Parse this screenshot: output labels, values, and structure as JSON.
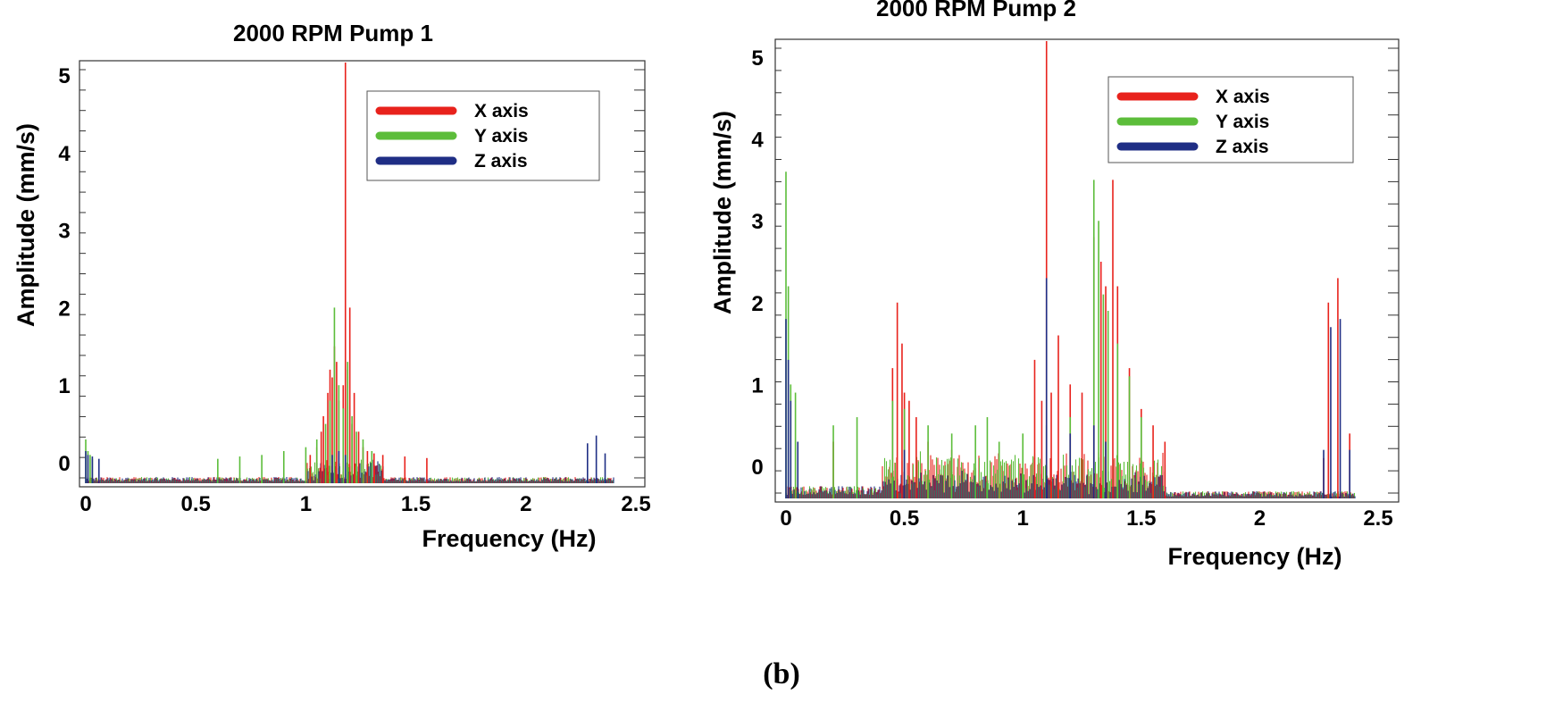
{
  "caption": "(b)",
  "colors": {
    "x": "#e8221c",
    "y": "#5cbd3a",
    "z": "#1f2e85",
    "axis": "#000000"
  },
  "chart_data": [
    {
      "type": "line",
      "title": "2000 RPM Pump 1",
      "xlabel": "Frequency (Hz)",
      "ylabel": "Amplitude (mm/s)",
      "xlim": [
        0,
        2.5
      ],
      "ylim": [
        -0.3,
        5.2
      ],
      "xticks": [
        "0",
        "0.5",
        "1",
        "1.5",
        "2",
        "2.5"
      ],
      "yticks": [
        "0",
        "1",
        "2",
        "3",
        "4",
        "5"
      ],
      "legend_position": "top-right",
      "series": [
        {
          "name": "X axis",
          "key": "x",
          "x": [
            1.02,
            1.05,
            1.07,
            1.08,
            1.1,
            1.11,
            1.12,
            1.13,
            1.14,
            1.15,
            1.17,
            1.18,
            1.19,
            1.2,
            1.21,
            1.22,
            1.24,
            1.26,
            1.28,
            1.31,
            1.35,
            1.45,
            1.55
          ],
          "y": [
            0.1,
            0.2,
            0.4,
            0.6,
            0.9,
            1.2,
            1.1,
            1.5,
            1.3,
            0.8,
            1.0,
            5.2,
            1.2,
            2.0,
            0.5,
            0.9,
            0.4,
            0.2,
            0.15,
            0.12,
            0.1,
            0.08,
            0.06
          ]
        },
        {
          "name": "Y axis",
          "key": "y",
          "x": [
            0.0,
            0.01,
            0.02,
            0.03,
            0.6,
            0.7,
            0.8,
            0.9,
            1.0,
            1.05,
            1.09,
            1.11,
            1.13,
            1.15,
            1.17,
            1.19,
            1.21,
            1.23,
            1.26,
            1.3
          ],
          "y": [
            0.3,
            0.15,
            0.1,
            0.05,
            0.05,
            0.08,
            0.1,
            0.15,
            0.2,
            0.3,
            0.5,
            0.8,
            2.0,
            1.0,
            0.7,
            1.3,
            0.6,
            0.4,
            0.3,
            0.15
          ]
        },
        {
          "name": "Z axis",
          "key": "z",
          "x": [
            0.0,
            0.01,
            0.03,
            0.06,
            1.12,
            1.15,
            1.18,
            2.28,
            2.32,
            2.36
          ],
          "y": [
            0.15,
            0.1,
            0.08,
            0.05,
            0.1,
            0.15,
            0.1,
            0.25,
            0.35,
            0.12
          ]
        }
      ]
    },
    {
      "type": "line",
      "title": "2000 RPM Pump 2",
      "xlabel": "Frequency (Hz)",
      "ylabel": "Amplitude (mm/s)",
      "xlim": [
        0,
        2.5
      ],
      "ylim": [
        -0.5,
        5.3
      ],
      "xticks": [
        "0",
        "0.5",
        "1",
        "1.5",
        "2",
        "2.5"
      ],
      "yticks": [
        "0",
        "1",
        "2",
        "3",
        "4",
        "5"
      ],
      "legend_position": "top-right",
      "series": [
        {
          "name": "X axis",
          "key": "x",
          "x": [
            0.2,
            0.45,
            0.47,
            0.49,
            0.5,
            0.52,
            0.55,
            0.6,
            0.7,
            1.05,
            1.08,
            1.1,
            1.12,
            1.15,
            1.2,
            1.25,
            1.3,
            1.33,
            1.35,
            1.38,
            1.4,
            1.45,
            1.5,
            1.55,
            1.6,
            2.27,
            2.29,
            2.33,
            2.38
          ],
          "y": [
            0.3,
            1.2,
            2.0,
            1.5,
            0.9,
            0.8,
            0.6,
            0.3,
            0.2,
            1.3,
            0.8,
            5.3,
            0.9,
            1.6,
            1.0,
            0.9,
            2.8,
            2.5,
            2.2,
            3.5,
            2.2,
            1.2,
            0.7,
            0.5,
            0.3,
            0.1,
            2.0,
            2.3,
            0.4
          ]
        },
        {
          "name": "Y axis",
          "key": "y",
          "x": [
            0.0,
            0.01,
            0.02,
            0.04,
            0.2,
            0.3,
            0.45,
            0.5,
            0.6,
            0.7,
            0.8,
            0.85,
            0.9,
            1.0,
            1.1,
            1.2,
            1.3,
            1.32,
            1.34,
            1.36,
            1.4,
            1.45,
            1.5
          ],
          "y": [
            3.6,
            2.2,
            1.0,
            0.9,
            0.5,
            0.6,
            0.8,
            0.7,
            0.5,
            0.4,
            0.5,
            0.6,
            0.3,
            0.4,
            0.5,
            0.6,
            3.5,
            3.0,
            2.1,
            1.9,
            1.5,
            1.1,
            0.6
          ]
        },
        {
          "name": "Z axis",
          "key": "z",
          "x": [
            0.0,
            0.01,
            0.02,
            0.05,
            0.5,
            1.1,
            1.2,
            1.3,
            1.35,
            2.27,
            2.3,
            2.34,
            2.38
          ],
          "y": [
            1.8,
            1.3,
            0.8,
            0.3,
            0.2,
            2.3,
            0.4,
            0.5,
            0.3,
            0.2,
            1.7,
            1.8,
            0.2
          ]
        }
      ]
    }
  ]
}
